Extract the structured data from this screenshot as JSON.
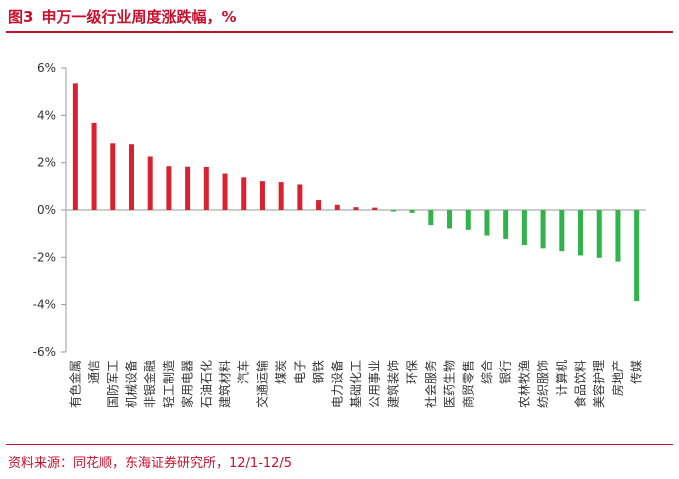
{
  "header": {
    "fig_num": "图3",
    "title": "申万一级行业周度涨跌幅，%"
  },
  "footer": {
    "source": "资料来源：同花顺，东海证券研究所，12/1-12/5"
  },
  "colors": {
    "accent": "#c8102e",
    "positive": "#d7232f",
    "negative": "#2fb34a",
    "axis": "#999999"
  },
  "chart_data": {
    "type": "bar",
    "title": "申万一级行业周度涨跌幅，%",
    "xlabel": "",
    "ylabel": "",
    "ylim": [
      -6,
      6
    ],
    "yticks": [
      6,
      4,
      2,
      0,
      -2,
      -4,
      -6
    ],
    "ytick_labels": [
      "6%",
      "4%",
      "2%",
      "0%",
      "-2%",
      "-4%",
      "-6%"
    ],
    "categories": [
      "有色金属",
      "通信",
      "国防军工",
      "机械设备",
      "非银金融",
      "轻工制造",
      "家用电器",
      "石油石化",
      "建筑材料",
      "汽车",
      "交通运输",
      "煤炭",
      "电子",
      "钢铁",
      "电力设备",
      "基础化工",
      "公用事业",
      "建筑装饰",
      "环保",
      "社会服务",
      "医药生物",
      "商贸零售",
      "综合",
      "银行",
      "农林牧渔",
      "纺织服饰",
      "计算机",
      "食品饮料",
      "美容护理",
      "房地产",
      "传媒"
    ],
    "values": [
      5.35,
      3.68,
      2.82,
      2.78,
      2.26,
      1.85,
      1.83,
      1.82,
      1.54,
      1.38,
      1.22,
      1.18,
      1.08,
      0.42,
      0.22,
      0.12,
      0.1,
      -0.06,
      -0.12,
      -0.64,
      -0.78,
      -0.84,
      -1.08,
      -1.22,
      -1.48,
      -1.62,
      -1.74,
      -1.92,
      -2.02,
      -2.18,
      -3.85
    ]
  }
}
